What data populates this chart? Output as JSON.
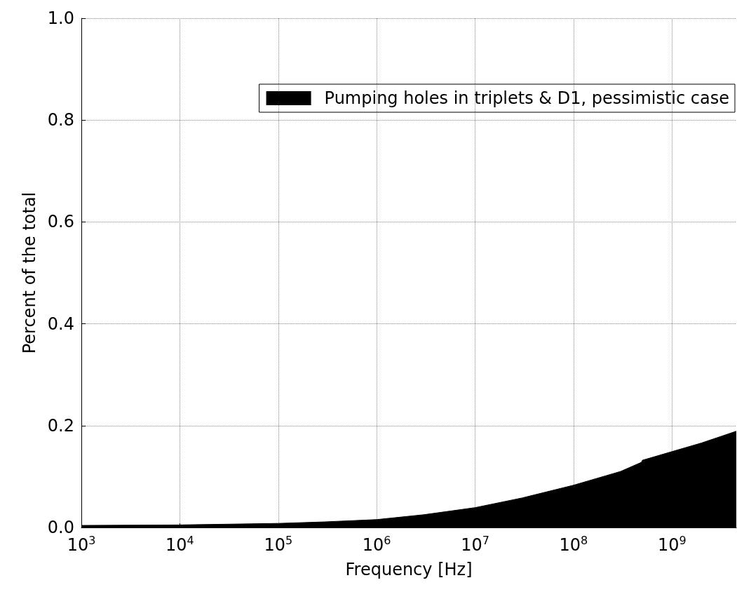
{
  "chart_data": {
    "type": "area",
    "xlabel": "Frequency [Hz]",
    "ylabel": "Percent of the total",
    "log": "x",
    "grid": true,
    "legend": "top right",
    "xlim": [
      1000,
      4500000000
    ],
    "ylim": [
      0,
      1
    ],
    "xticks": [
      {
        "value": 1000,
        "label": "10$^{3}$"
      },
      {
        "value": 10000,
        "label": "10$^{4}$"
      },
      {
        "value": 100000,
        "label": "10$^{5}$"
      },
      {
        "value": 1000000,
        "label": "10$^{6}$"
      },
      {
        "value": 10000000,
        "label": "10$^{7}$"
      },
      {
        "value": 100000000,
        "label": "10$^{8}$"
      },
      {
        "value": 1000000000,
        "label": "10$^{9}$"
      }
    ],
    "yticks": [
      {
        "value": 0,
        "label": "0.0"
      },
      {
        "value": 0.2,
        "label": "0.2"
      },
      {
        "value": 0.4,
        "label": "0.4"
      },
      {
        "value": 0.6,
        "label": "0.6"
      },
      {
        "value": 0.8,
        "label": "0.8"
      },
      {
        "value": 1,
        "label": "1.0"
      }
    ],
    "series": [
      {
        "name": "Pumping holes in triplets & D1, pessimistic case",
        "color": "#000000",
        "x": [
          1000,
          10000,
          100000,
          300000,
          1000000,
          3000000,
          10000000,
          30000000,
          100000000,
          300000000,
          490000000,
          500000000,
          1000000000,
          2000000000,
          4500000000
        ],
        "values": [
          0.004,
          0.005,
          0.008,
          0.011,
          0.0155,
          0.025,
          0.039,
          0.058,
          0.083,
          0.11,
          0.128,
          0.132,
          0.149,
          0.166,
          0.189
        ]
      }
    ]
  }
}
